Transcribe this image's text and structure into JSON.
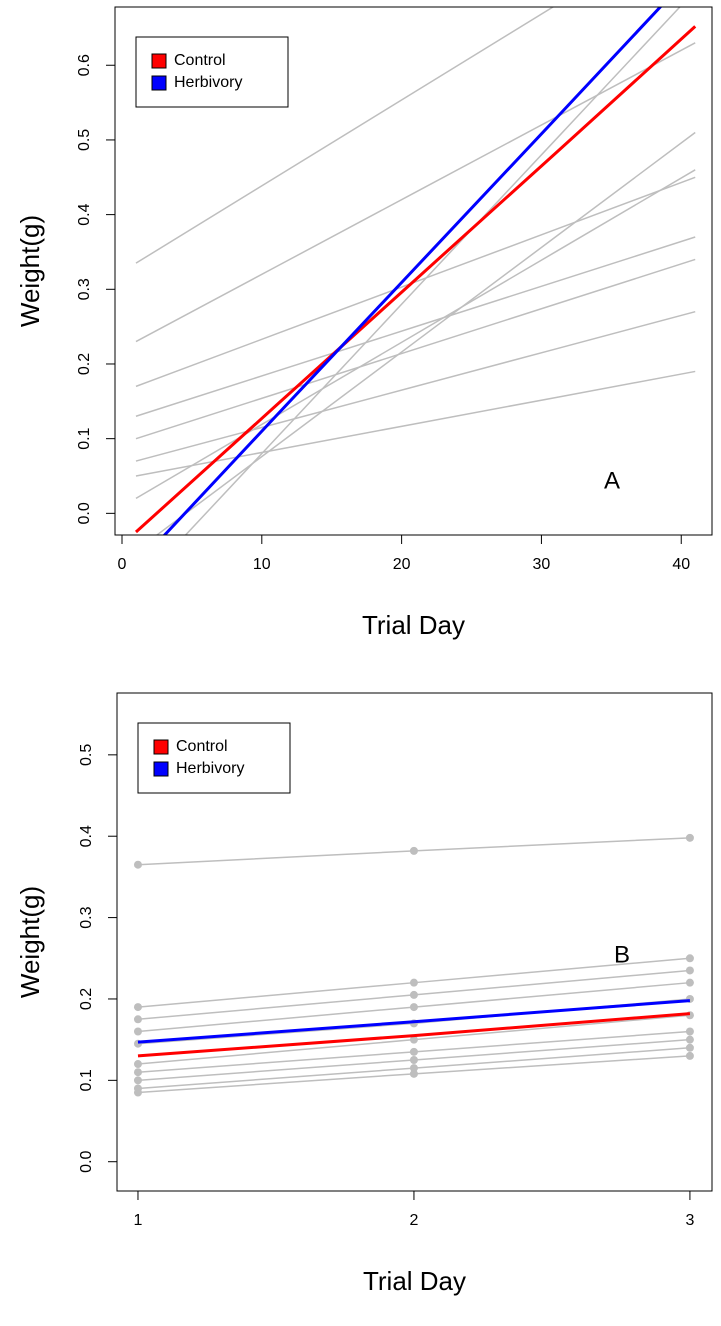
{
  "chart_data": [
    {
      "type": "line",
      "xlabel": "Trial Day",
      "ylabel": "Weight(g)",
      "annotation": "A",
      "legend": "top-left",
      "x": [
        1,
        11,
        21,
        31,
        41
      ],
      "xlim": [
        -0.5,
        42.2
      ],
      "ylim": [
        -0.029,
        0.678
      ],
      "xticks": [
        0,
        10,
        20,
        30,
        40
      ],
      "yticks": [
        {
          "value": 0,
          "label": "0.0"
        },
        0.1,
        0.2,
        0.3,
        0.4,
        0.5,
        0.6
      ],
      "series": [
        {
          "color": "#bebebe",
          "values": [
            0.335,
            0.45,
            0.565,
            0.68,
            0.795
          ]
        },
        {
          "color": "#bebebe",
          "values": [
            0.23,
            0.33,
            0.43,
            0.53,
            0.63
          ]
        },
        {
          "color": "#bebebe",
          "values": [
            0.17,
            0.24,
            0.31,
            0.38,
            0.45
          ]
        },
        {
          "color": "#bebebe",
          "values": [
            0.1,
            0.16,
            0.22,
            0.28,
            0.34
          ]
        },
        {
          "color": "#bebebe",
          "values": [
            0.05,
            0.085,
            0.12,
            0.155,
            0.19
          ]
        },
        {
          "color": "#bebebe",
          "values": [
            0.13,
            0.19,
            0.25,
            0.31,
            0.37
          ]
        },
        {
          "color": "#bebebe",
          "values": [
            0.02,
            0.13,
            0.24,
            0.35,
            0.46
          ]
        },
        {
          "color": "#bebebe",
          "values": [
            -0.05,
            0.09,
            0.23,
            0.37,
            0.51
          ]
        },
        {
          "color": "#bebebe",
          "values": [
            0.07,
            0.12,
            0.17,
            0.22,
            0.27
          ]
        },
        {
          "color": "#bebebe",
          "values": [
            -0.1,
            0.1,
            0.3,
            0.5,
            0.7
          ]
        },
        {
          "name": "Control",
          "color": "#ff0000",
          "values": [
            -0.025,
            0.144,
            0.313,
            0.482,
            0.652
          ]
        },
        {
          "name": "Herbivory",
          "color": "#0000ff",
          "values": [
            -0.07,
            0.13,
            0.329,
            0.528,
            0.728
          ]
        }
      ]
    },
    {
      "type": "line",
      "xlabel": "Trial Day",
      "ylabel": "Weight(g)",
      "annotation": "B",
      "legend": "top-left",
      "points": true,
      "x": [
        1,
        2,
        3
      ],
      "xlim": [
        0.924,
        3.08
      ],
      "ylim": [
        -0.036,
        0.576
      ],
      "xticks": [
        1,
        2,
        3
      ],
      "yticks": [
        {
          "value": 0,
          "label": "0.0"
        },
        0.1,
        0.2,
        0.3,
        0.4,
        0.5
      ],
      "series": [
        {
          "color": "#bebebe",
          "values": [
            0.365,
            0.382,
            0.398
          ]
        },
        {
          "color": "#bebebe",
          "values": [
            0.19,
            0.22,
            0.25
          ]
        },
        {
          "color": "#bebebe",
          "values": [
            0.175,
            0.205,
            0.235
          ]
        },
        {
          "color": "#bebebe",
          "values": [
            0.16,
            0.19,
            0.22
          ]
        },
        {
          "color": "#bebebe",
          "values": [
            0.145,
            0.17,
            0.2
          ]
        },
        {
          "color": "#bebebe",
          "values": [
            0.12,
            0.15,
            0.18
          ]
        },
        {
          "color": "#bebebe",
          "values": [
            0.11,
            0.135,
            0.16
          ]
        },
        {
          "color": "#bebebe",
          "values": [
            0.1,
            0.125,
            0.15
          ]
        },
        {
          "color": "#bebebe",
          "values": [
            0.09,
            0.115,
            0.14
          ]
        },
        {
          "color": "#bebebe",
          "values": [
            0.085,
            0.108,
            0.13
          ]
        },
        {
          "name": "Control",
          "color": "#ff0000",
          "values": [
            0.13,
            0.155,
            0.182
          ]
        },
        {
          "name": "Herbivory",
          "color": "#0000ff",
          "values": [
            0.147,
            0.172,
            0.198
          ]
        }
      ]
    }
  ]
}
